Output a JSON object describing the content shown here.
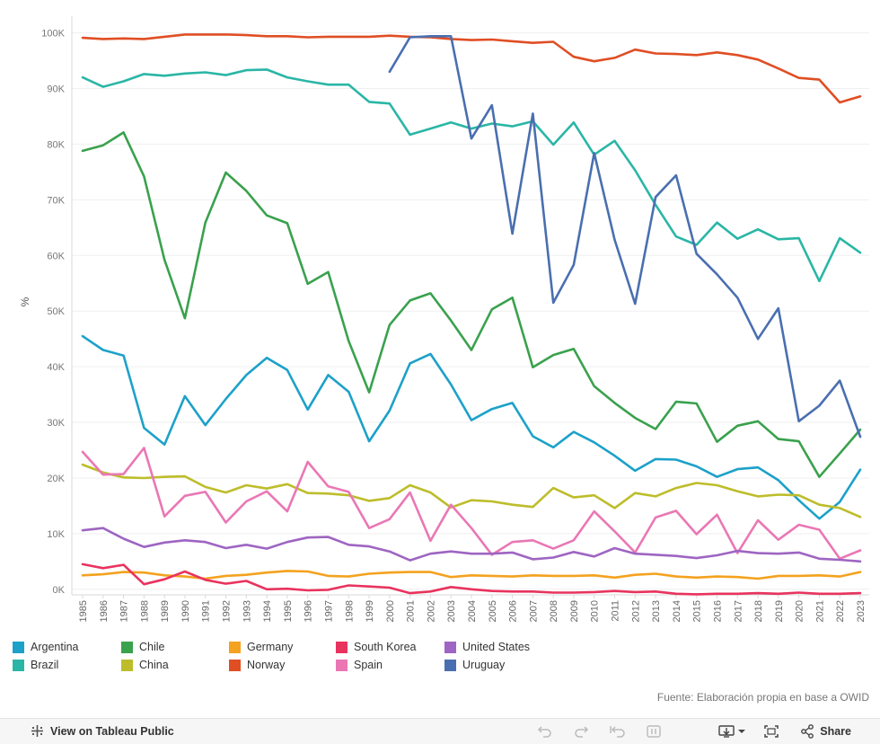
{
  "chart_data": {
    "type": "line",
    "title": "",
    "xlabel": "",
    "ylabel": "%",
    "ylim": [
      -1000,
      103000
    ],
    "y_ticks": [
      0,
      10000,
      20000,
      30000,
      40000,
      50000,
      60000,
      70000,
      80000,
      90000,
      100000
    ],
    "y_tick_labels": [
      "0K",
      "10K",
      "20K",
      "30K",
      "40K",
      "50K",
      "60K",
      "70K",
      "80K",
      "90K",
      "100K"
    ],
    "grid": true,
    "legend_position": "bottom",
    "x": [
      1985,
      1986,
      1987,
      1988,
      1989,
      1990,
      1991,
      1992,
      1993,
      1994,
      1995,
      1996,
      1997,
      1998,
      1999,
      2000,
      2001,
      2002,
      2003,
      2004,
      2005,
      2006,
      2007,
      2008,
      2009,
      2010,
      2011,
      2012,
      2013,
      2014,
      2015,
      2016,
      2017,
      2018,
      2019,
      2020,
      2021,
      2022,
      2023
    ],
    "series": [
      {
        "name": "Argentina",
        "color": "#1ca1c9",
        "values": [
          45500,
          43000,
          42000,
          29000,
          26000,
          34700,
          29500,
          34200,
          38500,
          41600,
          39400,
          32300,
          38500,
          35500,
          26600,
          32100,
          40600,
          42300,
          36800,
          30400,
          32400,
          33500,
          27500,
          25500,
          28300,
          26400,
          24000,
          21300,
          23400,
          23300,
          22100,
          20200,
          21600,
          21900,
          19600,
          16000,
          12700,
          15700,
          21500
        ]
      },
      {
        "name": "Brazil",
        "color": "#2ab6a6",
        "values": [
          92000,
          90300,
          91300,
          92600,
          92300,
          92700,
          92900,
          92400,
          93300,
          93400,
          92000,
          91300,
          90700,
          90700,
          87600,
          87300,
          81700,
          82800,
          83900,
          82800,
          83700,
          83200,
          84100,
          79900,
          83900,
          78100,
          80600,
          75300,
          69100,
          63400,
          61900,
          65900,
          63000,
          64700,
          62900,
          63100,
          55400,
          63100,
          60500
        ]
      },
      {
        "name": "Chile",
        "color": "#3aa14d",
        "values": [
          78800,
          79800,
          82100,
          74200,
          59200,
          48700,
          65900,
          74900,
          71600,
          67200,
          65800,
          54900,
          57000,
          44600,
          35400,
          47500,
          51900,
          53200,
          48300,
          43000,
          50300,
          52400,
          39900,
          42100,
          43200,
          36500,
          33500,
          30800,
          28800,
          33700,
          33400,
          26500,
          29400,
          30200,
          27000,
          26600,
          20200,
          24400,
          28700
        ]
      },
      {
        "name": "China",
        "color": "#bdbd2b",
        "values": [
          22400,
          21000,
          20100,
          20000,
          20200,
          20300,
          18400,
          17400,
          18700,
          18100,
          18900,
          17300,
          17200,
          16900,
          15900,
          16400,
          18700,
          17400,
          14700,
          16000,
          15800,
          15200,
          14800,
          18200,
          16500,
          16900,
          14600,
          17300,
          16700,
          18200,
          19100,
          18700,
          17600,
          16700,
          17000,
          16900,
          15200,
          14600,
          13000
        ]
      },
      {
        "name": "Germany",
        "color": "#f4a21f",
        "values": [
          2500,
          2700,
          3100,
          3000,
          2500,
          2300,
          1900,
          2400,
          2600,
          3000,
          3300,
          3200,
          2400,
          2300,
          2800,
          3000,
          3100,
          3100,
          2200,
          2500,
          2400,
          2300,
          2500,
          2400,
          2400,
          2500,
          2100,
          2600,
          2800,
          2300,
          2100,
          2300,
          2200,
          1900,
          2400,
          2400,
          2500,
          2300,
          3100
        ]
      },
      {
        "name": "Norway",
        "color": "#e04e24",
        "values": [
          99100,
          98900,
          99000,
          98900,
          99300,
          99700,
          99700,
          99700,
          99600,
          99400,
          99400,
          99200,
          99300,
          99300,
          99300,
          99500,
          99300,
          99200,
          98900,
          98700,
          98800,
          98500,
          98200,
          98400,
          95700,
          94900,
          95500,
          97000,
          96300,
          96200,
          96000,
          96500,
          96000,
          95200,
          93600,
          91900,
          91600,
          87500,
          88600
        ]
      },
      {
        "name": "South Korea",
        "color": "#e8335e",
        "values": [
          4500,
          3800,
          4400,
          900,
          1800,
          3200,
          1700,
          1000,
          1500,
          0,
          100,
          -200,
          -100,
          700,
          500,
          300,
          -700,
          -400,
          400,
          0,
          -300,
          -400,
          -400,
          -600,
          -600,
          -500,
          -300,
          -500,
          -400,
          -800,
          -900,
          -800,
          -800,
          -700,
          -800,
          -600,
          -800,
          -800,
          -700
        ]
      },
      {
        "name": "Spain",
        "color": "#ea77b4",
        "values": [
          24700,
          20600,
          20700,
          25400,
          13100,
          16800,
          17500,
          12000,
          15800,
          17600,
          14000,
          22900,
          18500,
          17500,
          11000,
          12600,
          17400,
          8700,
          15200,
          11000,
          6200,
          8500,
          8800,
          7300,
          8800,
          14000,
          10400,
          6600,
          12900,
          14100,
          9900,
          13400,
          6500,
          12400,
          8900,
          11600,
          10700,
          5500,
          7000
        ]
      },
      {
        "name": "United States",
        "color": "#9e65c2",
        "values": [
          10600,
          11000,
          9100,
          7600,
          8400,
          8800,
          8500,
          7400,
          8000,
          7300,
          8500,
          9300,
          9400,
          8000,
          7700,
          6800,
          5200,
          6400,
          6800,
          6400,
          6400,
          6600,
          5400,
          5700,
          6700,
          5900,
          7400,
          6400,
          6200,
          6000,
          5600,
          6100,
          6900,
          6500,
          6400,
          6600,
          5500,
          5300,
          5000
        ]
      },
      {
        "name": "Uruguay",
        "color": "#4a6fb0",
        "values": [
          null,
          null,
          null,
          null,
          null,
          null,
          null,
          null,
          null,
          null,
          null,
          null,
          null,
          null,
          null,
          93000,
          99200,
          99400,
          99400,
          81000,
          87000,
          63900,
          85500,
          51500,
          58300,
          78400,
          62800,
          51300,
          70500,
          74400,
          60300,
          56600,
          52400,
          45000,
          50500,
          30200,
          33000,
          37500,
          27400
        ]
      }
    ]
  },
  "legend": {
    "items": [
      {
        "label": "Argentina",
        "color": "#1ca1c9"
      },
      {
        "label": "Brazil",
        "color": "#2ab6a6"
      },
      {
        "label": "Chile",
        "color": "#3aa14d"
      },
      {
        "label": "China",
        "color": "#bdbd2b"
      },
      {
        "label": "Germany",
        "color": "#f4a21f"
      },
      {
        "label": "Norway",
        "color": "#e04e24"
      },
      {
        "label": "South Korea",
        "color": "#e8335e"
      },
      {
        "label": "Spain",
        "color": "#ea77b4"
      },
      {
        "label": "United States",
        "color": "#9e65c2"
      },
      {
        "label": "Uruguay",
        "color": "#4a6fb0"
      }
    ]
  },
  "source_note": "Fuente: Elaboración propia en base a OWID",
  "toolbar": {
    "view_label": "View on Tableau Public",
    "share_label": "Share",
    "icons": [
      "undo-icon",
      "redo-icon",
      "revert-icon",
      "pause-icon",
      "download-icon",
      "fullscreen-icon",
      "share-icon"
    ]
  }
}
